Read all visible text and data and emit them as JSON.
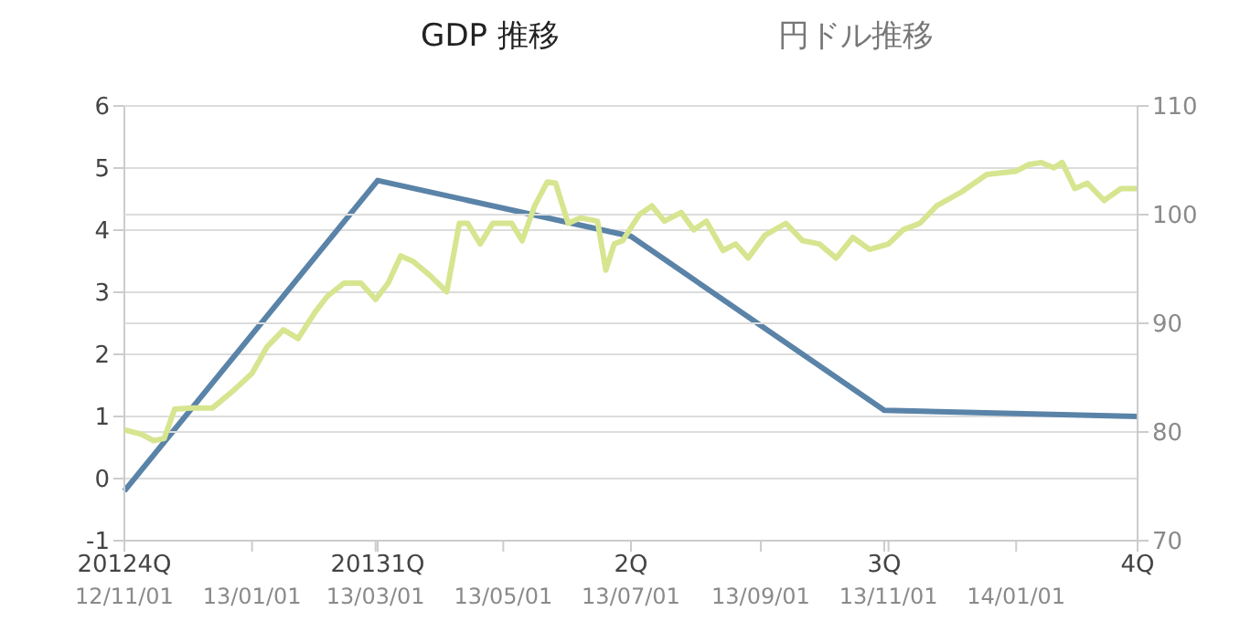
{
  "chart_data": [
    {
      "type": "line",
      "title": "GDP 推移",
      "categories": [
        "20124Q",
        "20131Q",
        "2Q",
        "3Q",
        "4Q"
      ],
      "series": [
        {
          "color": "#5a83a8",
          "values": [
            -0.2,
            4.8,
            3.9,
            1.1,
            1.0
          ]
        }
      ],
      "ylim": [
        -1,
        6
      ],
      "yticks": [
        -1,
        0,
        1,
        2,
        3,
        4,
        5,
        6
      ],
      "grid": "y",
      "marker": "none",
      "line_style": "solid"
    },
    {
      "type": "line",
      "title": "円ドル推移",
      "x": [
        "2012-11-01",
        "2012-11-09",
        "2012-11-15",
        "2012-11-20",
        "2012-11-25",
        "2012-12-03",
        "2012-12-13",
        "2012-12-23",
        "2013-01-01",
        "2013-01-08",
        "2013-01-16",
        "2013-01-23",
        "2013-01-31",
        "2013-02-06",
        "2013-02-14",
        "2013-02-22",
        "2013-03-01",
        "2013-03-07",
        "2013-03-13",
        "2013-03-19",
        "2013-03-27",
        "2013-04-04",
        "2013-04-10",
        "2013-04-14",
        "2013-04-20",
        "2013-04-26",
        "2013-05-05",
        "2013-05-10",
        "2013-05-16",
        "2013-05-22",
        "2013-05-26",
        "2013-06-01",
        "2013-06-07",
        "2013-06-15",
        "2013-06-19",
        "2013-06-23",
        "2013-06-27",
        "2013-07-05",
        "2013-07-11",
        "2013-07-17",
        "2013-07-25",
        "2013-07-31",
        "2013-08-06",
        "2013-08-14",
        "2013-08-20",
        "2013-08-26",
        "2013-09-03",
        "2013-09-13",
        "2013-09-21",
        "2013-09-29",
        "2013-10-07",
        "2013-10-15",
        "2013-10-23",
        "2013-11-01",
        "2013-11-08",
        "2013-11-16",
        "2013-11-24",
        "2013-12-06",
        "2013-12-18",
        "2014-01-01",
        "2014-01-07",
        "2014-01-13",
        "2014-01-19",
        "2014-01-23",
        "2014-01-29",
        "2014-02-04",
        "2014-02-12",
        "2014-02-20",
        "2014-02-28"
      ],
      "series": [
        {
          "color": "#d6e58f",
          "values": [
            80.2,
            79.8,
            79.2,
            79.4,
            82.1,
            82.2,
            82.2,
            83.8,
            85.4,
            87.8,
            89.4,
            88.6,
            91.0,
            92.5,
            93.7,
            93.7,
            92.2,
            93.7,
            96.2,
            95.7,
            94.4,
            92.9,
            99.2,
            99.2,
            97.3,
            99.2,
            99.2,
            97.6,
            100.8,
            103.0,
            102.9,
            99.2,
            99.7,
            99.4,
            94.9,
            97.3,
            97.6,
            100.0,
            100.8,
            99.4,
            100.2,
            98.6,
            99.4,
            96.7,
            97.3,
            96.0,
            98.1,
            99.2,
            97.6,
            97.3,
            96.0,
            97.9,
            96.8,
            97.3,
            98.6,
            99.2,
            100.8,
            102.1,
            103.7,
            104.0,
            104.6,
            104.8,
            104.3,
            104.8,
            102.4,
            102.9,
            101.3,
            102.4,
            102.4
          ]
        }
      ],
      "xlim": [
        "2012-11-01",
        "2014-02-28"
      ],
      "xticks": [
        {
          "value": "2012-11-01",
          "label": "12/11/01"
        },
        {
          "value": "2013-01-01",
          "label": "13/01/01"
        },
        {
          "value": "2013-03-01",
          "label": "13/03/01"
        },
        {
          "value": "2013-05-01",
          "label": "13/05/01"
        },
        {
          "value": "2013-07-01",
          "label": "13/07/01"
        },
        {
          "value": "2013-09-01",
          "label": "13/09/01"
        },
        {
          "value": "2013-11-01",
          "label": "13/11/01"
        },
        {
          "value": "2014-01-01",
          "label": "14/01/01"
        }
      ],
      "ylim": [
        70,
        110
      ],
      "yticks": [
        70,
        80,
        90,
        100,
        110
      ],
      "grid": "y",
      "marker": "none",
      "line_style": "solid"
    }
  ]
}
